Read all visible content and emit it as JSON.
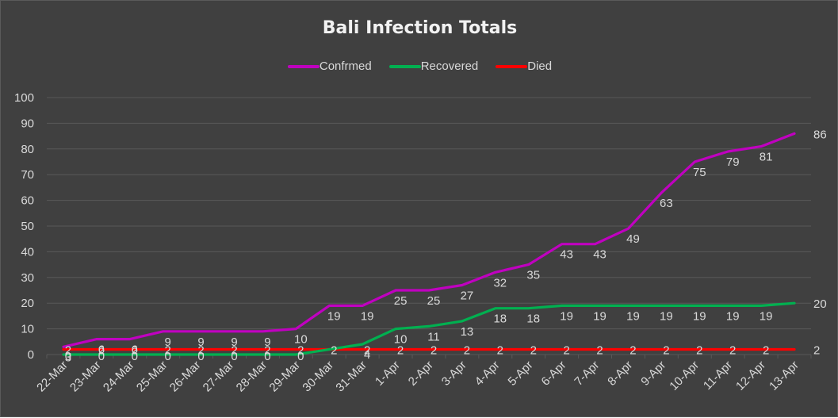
{
  "chart_data": {
    "type": "line",
    "title": "Bali Infection Totals",
    "xlabel": "",
    "ylabel": "",
    "ylim": [
      0,
      100
    ],
    "yticks": [
      0,
      10,
      20,
      30,
      40,
      50,
      60,
      70,
      80,
      90,
      100
    ],
    "grid": true,
    "legend_position": "top",
    "categories": [
      "22-Mar",
      "23-Mar",
      "24-Mar",
      "25-Mar",
      "26-Mar",
      "27-Mar",
      "28-Mar",
      "29-Mar",
      "30-Mar",
      "31-Mar",
      "1-Apr",
      "2-Apr",
      "3-Apr",
      "4-Apr",
      "5-Apr",
      "6-Apr",
      "7-Apr",
      "8-Apr",
      "9-Apr",
      "10-Apr",
      "11-Apr",
      "12-Apr",
      "13-Apr"
    ],
    "series": [
      {
        "name": "Confrmed",
        "color": "#c000c0",
        "values": [
          3,
          6,
          6,
          9,
          9,
          9,
          9,
          10,
          19,
          19,
          25,
          25,
          27,
          32,
          35,
          43,
          43,
          49,
          63,
          75,
          79,
          81,
          86
        ],
        "labels": [
          "3",
          "6",
          "6",
          "9",
          "9",
          "9",
          "9",
          "10",
          "19",
          "19",
          "25",
          "25",
          "27",
          "32",
          "35",
          "43",
          "43",
          "49",
          "63",
          "75",
          "79",
          "81",
          "86"
        ]
      },
      {
        "name": "Recovered",
        "color": "#00b050",
        "values": [
          0,
          0,
          0,
          0,
          0,
          0,
          0,
          0,
          2,
          4,
          10,
          11,
          13,
          18,
          18,
          19,
          19,
          19,
          19,
          19,
          19,
          19,
          20
        ],
        "labels": [
          "0",
          "0",
          "0",
          "0",
          "0",
          "0",
          "0",
          "0",
          "",
          "4",
          "10",
          "11",
          "13",
          "18",
          "18",
          "19",
          "19",
          "19",
          "19",
          "19",
          "19",
          "19",
          "20"
        ]
      },
      {
        "name": "Died",
        "color": "#ff0000",
        "values": [
          2,
          2,
          2,
          2,
          2,
          2,
          2,
          2,
          2,
          2,
          2,
          2,
          2,
          2,
          2,
          2,
          2,
          2,
          2,
          2,
          2,
          2,
          2
        ],
        "labels": [
          "2",
          "2",
          "2",
          "2",
          "2",
          "2",
          "2",
          "2",
          "2",
          "2",
          "2",
          "2",
          "2",
          "2",
          "2",
          "2",
          "2",
          "2",
          "2",
          "2",
          "2",
          "2",
          "2"
        ]
      }
    ]
  },
  "colors": {
    "background": "#404040",
    "gridline": "#595959",
    "text": "#d9d9d9",
    "title": "#f2f2f2"
  }
}
